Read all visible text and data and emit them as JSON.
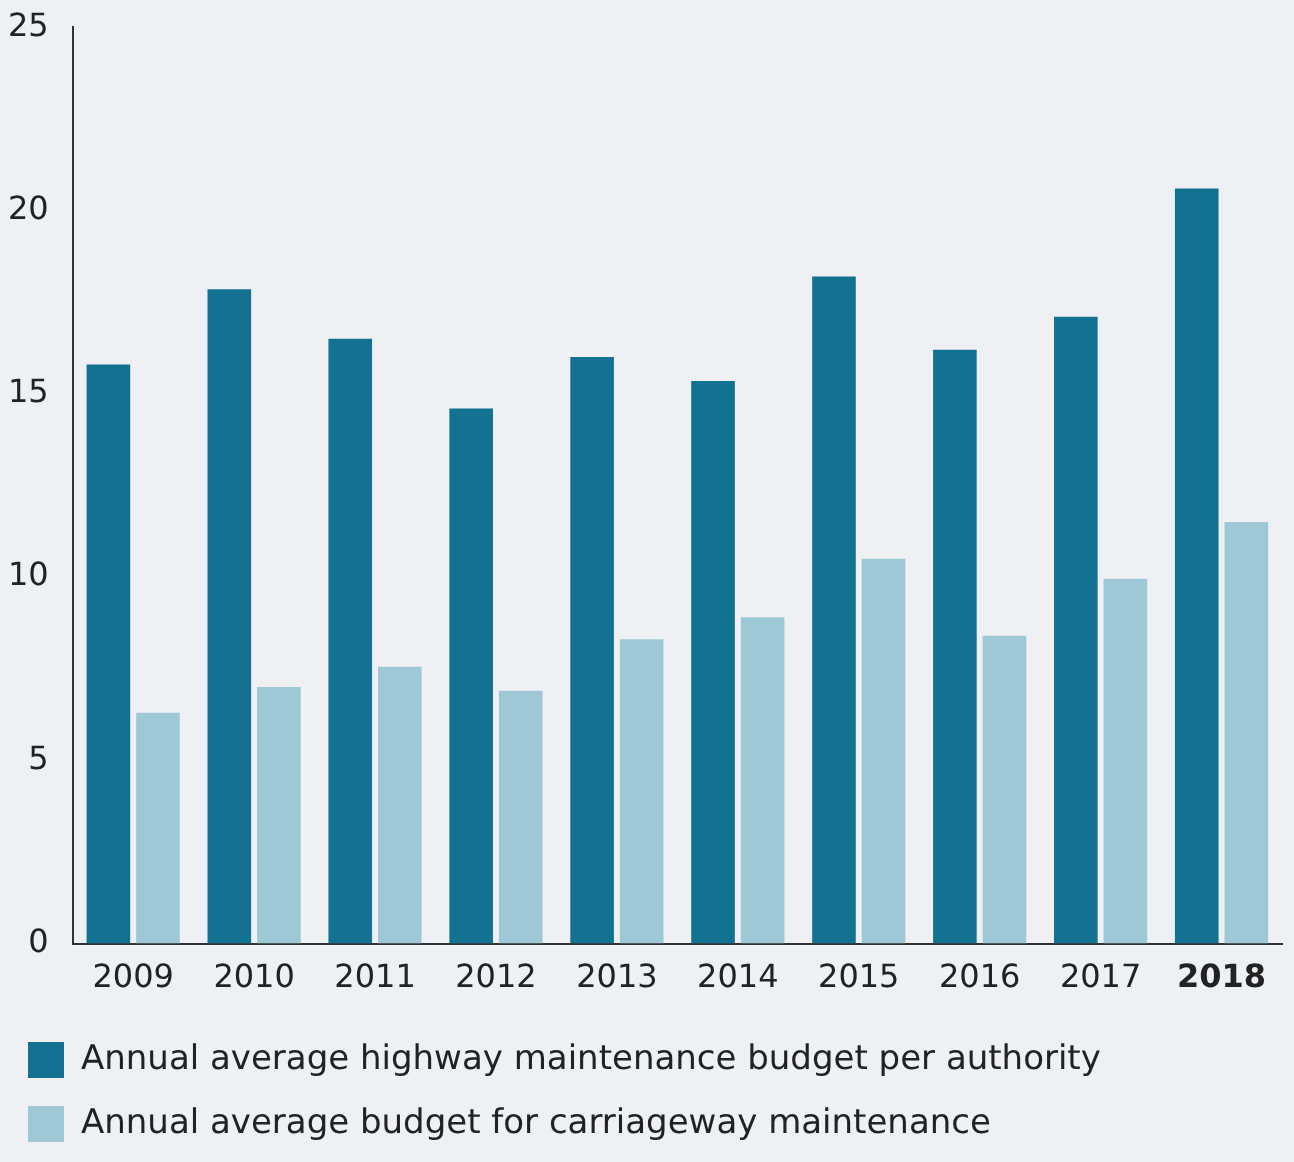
{
  "chart_data": {
    "type": "bar",
    "categories": [
      "2009",
      "2010",
      "2011",
      "2012",
      "2013",
      "2014",
      "2015",
      "2016",
      "2017",
      "2018"
    ],
    "series": [
      {
        "name": "Annual average highway maintenance budget per authority",
        "color": "#137291",
        "values": [
          15.8,
          17.85,
          16.5,
          14.6,
          16.0,
          15.35,
          18.2,
          16.2,
          17.1,
          20.6
        ]
      },
      {
        "name": "Annual average budget for carriageway maintenance",
        "color": "#9ec8d6",
        "values": [
          6.3,
          7.0,
          7.55,
          6.9,
          8.3,
          8.9,
          10.5,
          8.4,
          9.95,
          11.5
        ]
      }
    ],
    "ylim": [
      0,
      25
    ],
    "yticks": [
      0,
      5,
      10,
      15,
      20,
      25
    ],
    "grid": false,
    "legend": "bottom"
  }
}
